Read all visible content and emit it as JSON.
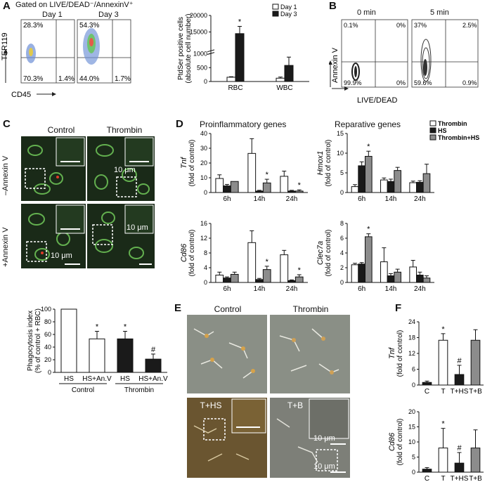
{
  "panel_letters": [
    "A",
    "B",
    "C",
    "D",
    "E",
    "F"
  ],
  "panelA": {
    "gating": "Gated on LIVE/DEAD⁻/AnnexinV⁺",
    "plots": [
      {
        "title": "Day 1",
        "q": [
          "28.3%",
          "",
          "70.3%",
          "1.4%"
        ]
      },
      {
        "title": "Day 3",
        "q": [
          "54.3%",
          "",
          "44.0%",
          "1.7%"
        ]
      }
    ],
    "ylabel": "TER119",
    "xlabel": "CD45"
  },
  "panelB": {
    "ylabel": "Annexin V",
    "xlabel": "LIVE/DEAD",
    "plots": [
      {
        "title": "0 min",
        "q": [
          "0.1%",
          "0%",
          "99.9%",
          "0%"
        ]
      },
      {
        "title": "5 min",
        "q": [
          "37%",
          "2.5%",
          "59.6%",
          "0.9%"
        ]
      }
    ]
  },
  "panelC": {
    "col_titles": [
      "Control",
      "Thrombin"
    ],
    "row_labels": [
      "–Annexin V",
      "+Annexin V"
    ],
    "scale": "10 μm",
    "groups": [
      "Control",
      "Thrombin"
    ]
  },
  "panelD": {
    "left_title": "Proinflammatory genes",
    "right_title": "Reparative genes"
  },
  "panelE": {
    "titles": [
      "Control",
      "Thrombin",
      "T+HS",
      "T+B"
    ],
    "scale": "10 μm"
  },
  "colors": {
    "white": "#ffffff",
    "black": "#1a1a1a",
    "gray": "#8c8c8c"
  },
  "chart_data": [
    {
      "id": "A-bar",
      "type": "bar",
      "categories": [
        "RBC",
        "WBC"
      ],
      "series": [
        {
          "name": "Day 1",
          "values": [
            1300,
            120
          ]
        },
        {
          "name": "Day 3",
          "values": [
            14500,
            580
          ]
        }
      ],
      "errors": [
        [
          150,
          40
        ],
        [
          2200,
          300
        ]
      ],
      "sig": [
        [
          "",
          ""
        ],
        [
          "*",
          ""
        ]
      ],
      "ylabel": "PtdSer positive cells\n(absolute cell number)",
      "yticks": [
        "0",
        "500",
        "1000",
        "15000",
        "20000"
      ],
      "ybreak": true,
      "legend": "top-right"
    },
    {
      "id": "C-bar",
      "type": "bar",
      "categories": [
        "HS",
        "HS+An.V",
        "HS",
        "HS+An.V"
      ],
      "values": [
        100,
        53,
        53,
        21
      ],
      "errors": [
        0,
        12,
        12,
        8
      ],
      "sig": [
        "",
        "*",
        "*",
        "#"
      ],
      "fills": [
        "white",
        "white",
        "black",
        "black"
      ],
      "groups": [
        "Control",
        "Thrombin"
      ],
      "ylabel": "Phagocytosis index\n(% of control + RBC)",
      "ylim": [
        0,
        100
      ],
      "yticks": [
        "0",
        "20",
        "40",
        "60",
        "80",
        "100"
      ]
    },
    {
      "id": "D-Tnf",
      "type": "bar",
      "gene": "Tnf",
      "ylabel": "(fold of control)",
      "categories": [
        "6h",
        "14h",
        "24h"
      ],
      "series": [
        {
          "name": "Thrombin",
          "values": [
            9.5,
            26.5,
            11
          ]
        },
        {
          "name": "HS",
          "values": [
            4.5,
            1,
            1
          ]
        },
        {
          "name": "Thrombin+HS",
          "values": [
            7.5,
            6.5,
            1
          ]
        }
      ],
      "errors": [
        [
          2.5,
          10,
          3.5
        ],
        [
          1,
          0.5,
          0.5
        ],
        [
          0,
          2.5,
          0.8
        ]
      ],
      "sig": [
        [
          "",
          "",
          ""
        ],
        [
          "",
          "",
          ""
        ],
        [
          "",
          "*",
          "*"
        ]
      ],
      "ylim": [
        0,
        40
      ],
      "yticks": [
        "0",
        "10",
        "20",
        "30",
        "40"
      ]
    },
    {
      "id": "D-Hmox1",
      "type": "bar",
      "gene": "Hmox1",
      "ylabel": "(fold of control)",
      "categories": [
        "6h",
        "14h",
        "24h"
      ],
      "series": [
        {
          "name": "Thrombin",
          "values": [
            1.5,
            3.2,
            2.5
          ]
        },
        {
          "name": "HS",
          "values": [
            6.8,
            2.8,
            2.6
          ]
        },
        {
          "name": "Thrombin+HS",
          "values": [
            9.2,
            5.6,
            4.8
          ]
        }
      ],
      "errors": [
        [
          0.5,
          0.5,
          0.4
        ],
        [
          1,
          0.6,
          0.4
        ],
        [
          1.3,
          0.8,
          2.4
        ]
      ],
      "sig": [
        [
          "",
          "",
          ""
        ],
        [
          "",
          "",
          ""
        ],
        [
          "*",
          "",
          ""
        ]
      ],
      "ylim": [
        0,
        15
      ],
      "yticks": [
        "0",
        "5",
        "10",
        "15"
      ],
      "legend": "top-right"
    },
    {
      "id": "D-Cd86",
      "type": "bar",
      "gene": "Cd86",
      "ylabel": "(fold of control)",
      "categories": [
        "6h",
        "14h",
        "24h"
      ],
      "series": [
        {
          "name": "Thrombin",
          "values": [
            2,
            10.8,
            7.5
          ]
        },
        {
          "name": "HS",
          "values": [
            1.2,
            0.8,
            0.5
          ]
        },
        {
          "name": "Thrombin+HS",
          "values": [
            2.2,
            3.5,
            1.5
          ]
        }
      ],
      "errors": [
        [
          0.8,
          3.2,
          1.2
        ],
        [
          0.3,
          0.3,
          0.2
        ],
        [
          0.6,
          0.9,
          0.6
        ]
      ],
      "sig": [
        [
          "",
          "",
          ""
        ],
        [
          "",
          "",
          ""
        ],
        [
          "",
          "*",
          "*"
        ]
      ],
      "ylim": [
        0,
        16
      ],
      "yticks": [
        "0",
        "4",
        "8",
        "12",
        "16"
      ]
    },
    {
      "id": "D-Clec7a",
      "type": "bar",
      "gene": "Clec7a",
      "ylabel": "(fold of control)",
      "categories": [
        "6h",
        "14h",
        "24h"
      ],
      "series": [
        {
          "name": "Thrombin",
          "values": [
            2.4,
            2.8,
            2.1
          ]
        },
        {
          "name": "HS",
          "values": [
            2.5,
            0.9,
            1
          ]
        },
        {
          "name": "Thrombin+HS",
          "values": [
            6.2,
            1.4,
            0.6
          ]
        }
      ],
      "errors": [
        [
          0.2,
          1.9,
          0.9
        ],
        [
          0.2,
          0.3,
          0.4
        ],
        [
          0.4,
          0.4,
          0.3
        ]
      ],
      "sig": [
        [
          "",
          "",
          ""
        ],
        [
          "",
          "",
          ""
        ],
        [
          "*",
          "",
          ""
        ]
      ],
      "ylim": [
        0,
        8
      ],
      "yticks": [
        "0",
        "2",
        "4",
        "6",
        "8"
      ]
    },
    {
      "id": "F-Tnf",
      "type": "bar",
      "gene": "Tnf",
      "ylabel": "(fold of control)",
      "categories": [
        "C",
        "T",
        "T+HS",
        "T+B"
      ],
      "values": [
        1,
        17,
        4,
        17
      ],
      "errors": [
        0.5,
        2.5,
        3.5,
        4
      ],
      "sig": [
        "",
        "*",
        "#",
        ""
      ],
      "fills": [
        "black",
        "white",
        "black",
        "gray"
      ],
      "ylim": [
        0,
        24
      ],
      "yticks": [
        "0",
        "6",
        "12",
        "18",
        "24"
      ]
    },
    {
      "id": "F-Cd86",
      "type": "bar",
      "gene": "Cd86",
      "ylabel": "(fold of control)",
      "categories": [
        "C",
        "T",
        "T+HS",
        "T+B"
      ],
      "values": [
        1,
        8,
        3,
        8
      ],
      "errors": [
        0.5,
        6.5,
        3.5,
        6
      ],
      "sig": [
        "",
        "*",
        "#",
        ""
      ],
      "fills": [
        "black",
        "white",
        "black",
        "gray"
      ],
      "ylim": [
        0,
        20
      ],
      "yticks": [
        "0",
        "5",
        "10",
        "15",
        "20"
      ]
    }
  ]
}
